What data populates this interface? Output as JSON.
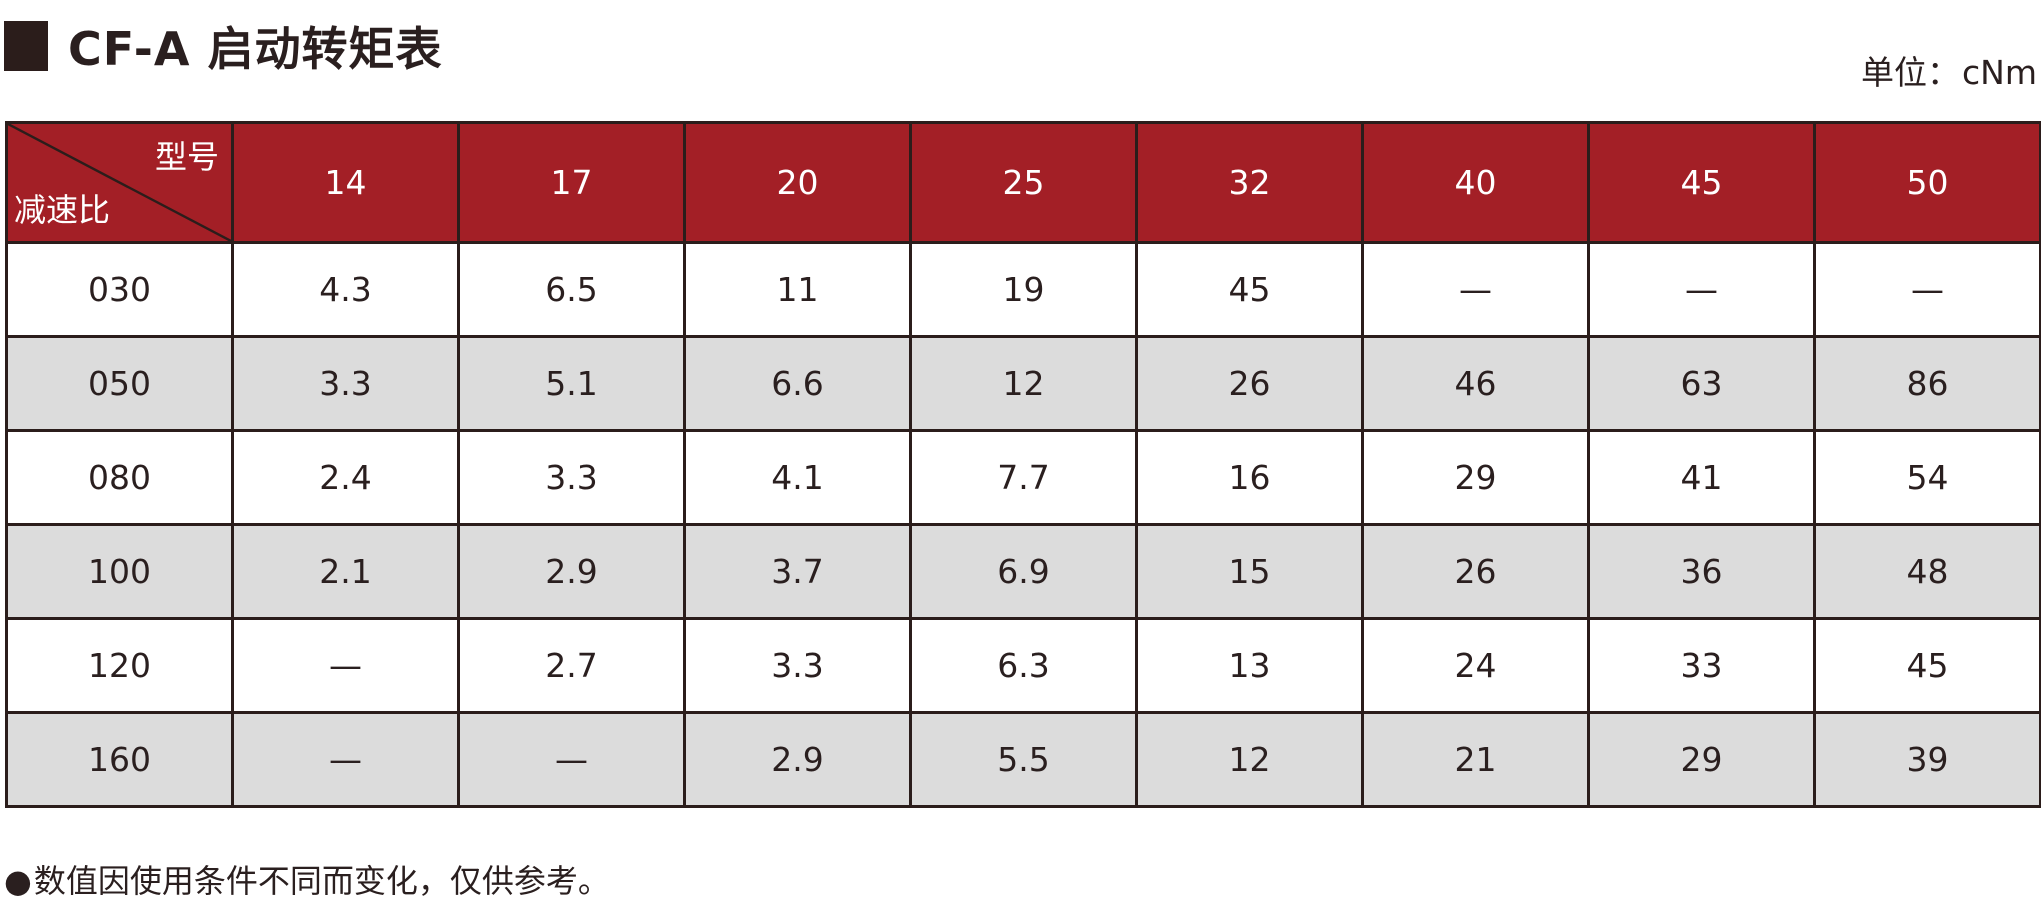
{
  "title": "CF-A 启动转矩表",
  "unit": {
    "label": "单位：",
    "value": "cNm"
  },
  "table": {
    "corner_top": "型号",
    "corner_bottom": "减速比",
    "models": [
      "14",
      "17",
      "20",
      "25",
      "32",
      "40",
      "45",
      "50"
    ],
    "rows": [
      {
        "ratio": "030",
        "values": [
          "4.3",
          "6.5",
          "11",
          "19",
          "45",
          "—",
          "—",
          "—"
        ]
      },
      {
        "ratio": "050",
        "values": [
          "3.3",
          "5.1",
          "6.6",
          "12",
          "26",
          "46",
          "63",
          "86"
        ]
      },
      {
        "ratio": "080",
        "values": [
          "2.4",
          "3.3",
          "4.1",
          "7.7",
          "16",
          "29",
          "41",
          "54"
        ]
      },
      {
        "ratio": "100",
        "values": [
          "2.1",
          "2.9",
          "3.7",
          "6.9",
          "15",
          "26",
          "36",
          "48"
        ]
      },
      {
        "ratio": "120",
        "values": [
          "—",
          "2.7",
          "3.3",
          "6.3",
          "13",
          "24",
          "33",
          "45"
        ]
      },
      {
        "ratio": "160",
        "values": [
          "—",
          "—",
          "2.9",
          "5.5",
          "12",
          "21",
          "29",
          "39"
        ]
      }
    ]
  },
  "note": {
    "bullet": "●",
    "text": "数值因使用条件不同而变化，仅供参考。"
  },
  "colors": {
    "header_bg": "#a31f26",
    "border": "#2b1d1b",
    "alt_row_bg": "#dcdcdc"
  }
}
